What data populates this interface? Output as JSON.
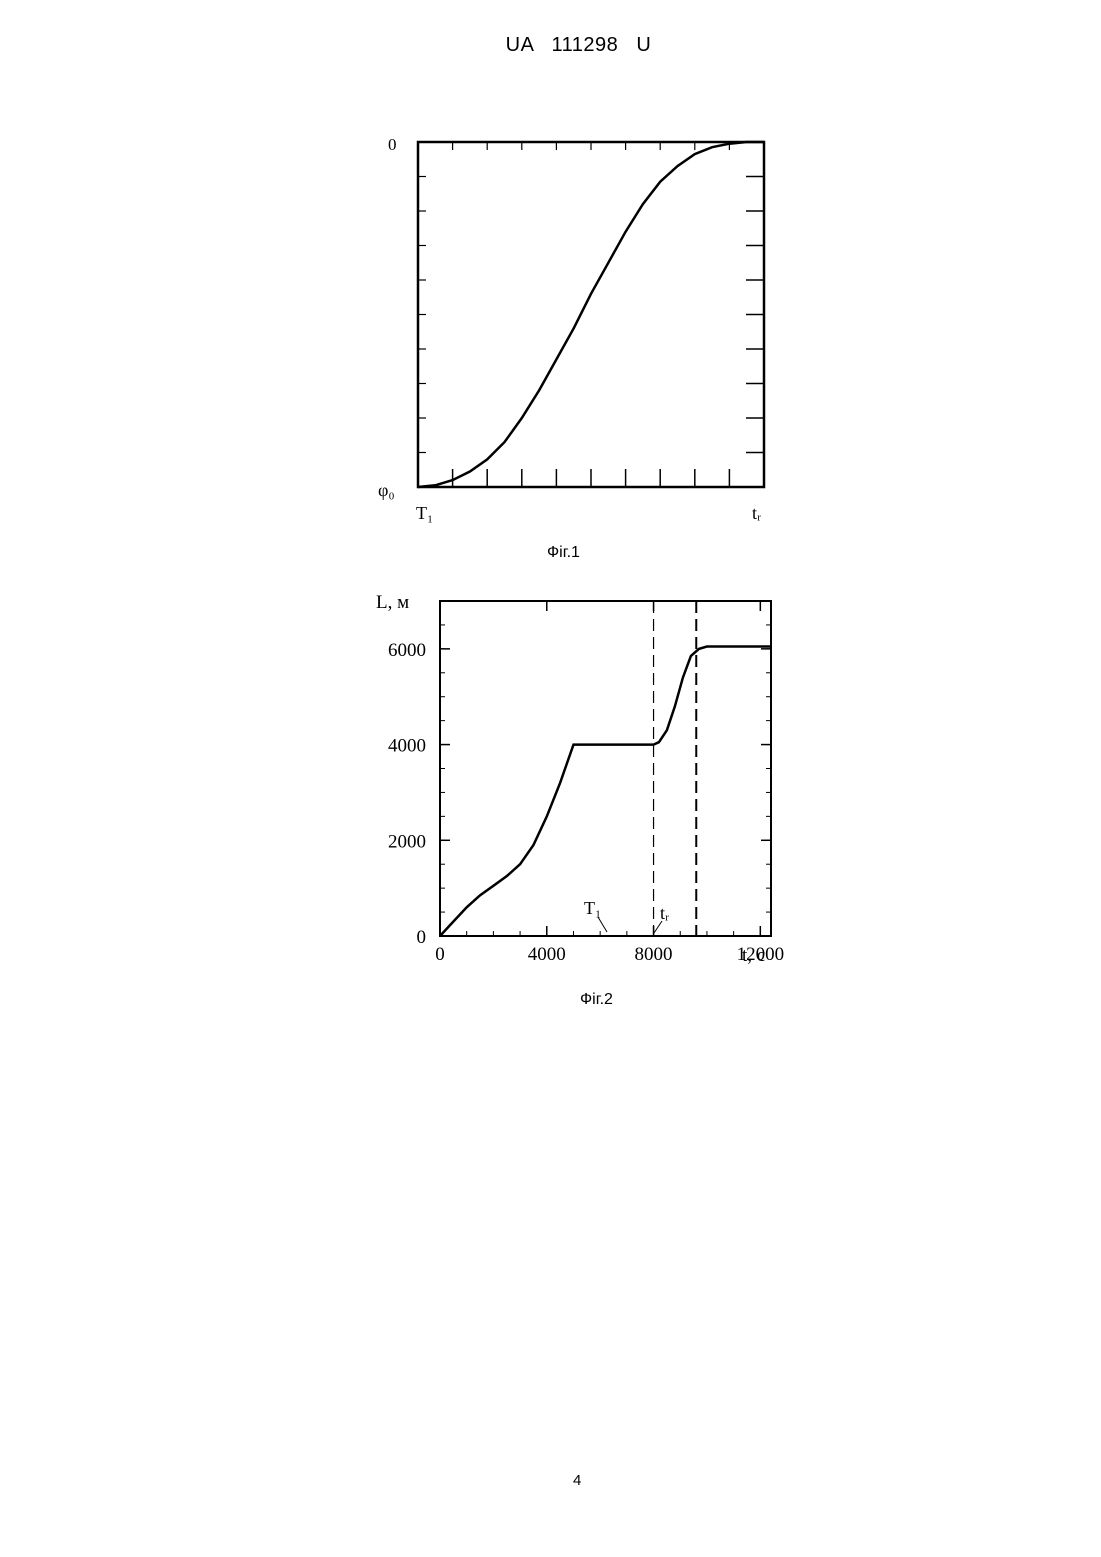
{
  "header": {
    "text": "UA   111298   U"
  },
  "figure1": {
    "caption": "Фіг.1",
    "y_top_label": "0",
    "y_bottom_label": "φ₀",
    "x_left_label": "T₁",
    "x_right_label": "tᵣ"
  },
  "figure2": {
    "caption": "Фіг.2",
    "marker_T": "T₁",
    "marker_t": "tᵣ"
  },
  "chart_data": [
    {
      "type": "line",
      "title": "",
      "xlabel": "",
      "ylabel": "",
      "xlim": [
        0,
        1
      ],
      "ylim": [
        0,
        1
      ],
      "grid": false,
      "x": [
        0,
        0.05,
        0.1,
        0.15,
        0.2,
        0.25,
        0.3,
        0.35,
        0.4,
        0.45,
        0.5,
        0.55,
        0.6,
        0.65,
        0.7,
        0.75,
        0.8,
        0.85,
        0.9,
        0.95,
        1.0
      ],
      "series": [
        {
          "values": [
            0.0,
            0.005,
            0.02,
            0.045,
            0.08,
            0.13,
            0.2,
            0.28,
            0.37,
            0.46,
            0.56,
            0.65,
            0.74,
            0.82,
            0.885,
            0.93,
            0.965,
            0.985,
            0.995,
            1.0,
            1.0
          ]
        }
      ]
    },
    {
      "type": "line",
      "title": "",
      "xlabel": "t, c",
      "ylabel": "L, м",
      "xlim": [
        0,
        12400
      ],
      "ylim": [
        0,
        7000
      ],
      "grid": false,
      "xticks": [
        "0",
        "4000",
        "8000",
        "12000"
      ],
      "yticks": [
        "0",
        "2000",
        "4000",
        "6000"
      ],
      "x": [
        0,
        500,
        1000,
        1500,
        2000,
        2500,
        3000,
        3500,
        4000,
        4500,
        5000,
        6000,
        7000,
        8000,
        8200,
        8500,
        8800,
        9100,
        9400,
        9700,
        10000,
        10500,
        11000,
        12000,
        12400
      ],
      "series": [
        {
          "values": [
            0,
            300,
            600,
            850,
            1050,
            1250,
            1500,
            1900,
            2500,
            3200,
            4000,
            4000,
            4000,
            4000,
            4050,
            4300,
            4800,
            5400,
            5850,
            6000,
            6050,
            6050,
            6050,
            6050,
            6050
          ]
        }
      ],
      "vlines": [
        8000,
        9600
      ]
    }
  ]
}
